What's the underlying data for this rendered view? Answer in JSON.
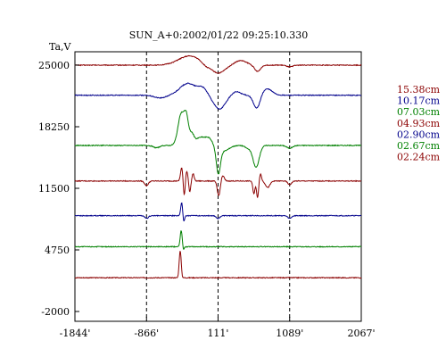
{
  "chart_data": {
    "type": "line",
    "title": "SUN_A+0:2002/01/22 09:25:10.330",
    "ylabel": "Ta,V",
    "xlabel": "",
    "xlim": [
      -1844,
      2067
    ],
    "ylim": [
      -2000,
      25000
    ],
    "x_ticks": [
      -1844,
      -866,
      111,
      1089,
      2067
    ],
    "x_tick_labels": [
      "-1844'",
      "-866'",
      "111'",
      "1089'",
      "2067'"
    ],
    "y_ticks": [
      25000,
      18250,
      11500,
      4750,
      -2000
    ],
    "y_tick_labels": [
      "25000",
      "18250",
      "11500",
      "4750",
      "-2000"
    ],
    "vlines": [
      -866,
      111,
      1089
    ],
    "legend_placement": "right",
    "series": [
      {
        "name": "15.38cm",
        "color": "#8b0000",
        "baseline": 25000,
        "features": [
          [
            -280,
            150,
            1000
          ],
          [
            -60,
            50,
            -300
          ],
          [
            111,
            90,
            -900
          ],
          [
            420,
            80,
            500
          ],
          [
            650,
            40,
            -700
          ],
          [
            1089,
            40,
            -200
          ]
        ]
      },
      {
        "name": "10.17cm",
        "color": "#00008b",
        "baseline": 21700,
        "features": [
          [
            -680,
            80,
            -300
          ],
          [
            -300,
            110,
            1300
          ],
          [
            -100,
            60,
            700
          ],
          [
            130,
            80,
            -1500
          ],
          [
            360,
            60,
            400
          ],
          [
            640,
            45,
            -1500
          ],
          [
            780,
            70,
            700
          ]
        ]
      },
      {
        "name": "07.03cm",
        "color": "#008000",
        "baseline": 16200,
        "features": [
          [
            -730,
            45,
            -250
          ],
          [
            -390,
            45,
            3500
          ],
          [
            -320,
            28,
            2500
          ],
          [
            -250,
            30,
            1100
          ],
          [
            -120,
            80,
            900
          ],
          [
            -10,
            40,
            500
          ],
          [
            115,
            28,
            -2800
          ],
          [
            190,
            70,
            -600
          ],
          [
            520,
            40,
            -300
          ],
          [
            630,
            42,
            -2400
          ],
          [
            1089,
            40,
            -300
          ]
        ]
      },
      {
        "name": "04.93cm",
        "color": "#8b0000",
        "baseline": 12300,
        "features": [
          [
            -866,
            25,
            -500
          ],
          [
            -385,
            16,
            1500
          ],
          [
            -350,
            14,
            -1800
          ],
          [
            -320,
            16,
            1200
          ],
          [
            -275,
            12,
            -1200
          ],
          [
            -230,
            14,
            800
          ],
          [
            120,
            20,
            -1600
          ],
          [
            175,
            20,
            600
          ],
          [
            600,
            14,
            -1400
          ],
          [
            650,
            14,
            -1800
          ],
          [
            690,
            14,
            800
          ],
          [
            790,
            30,
            -700
          ],
          [
            1089,
            25,
            -400
          ]
        ]
      },
      {
        "name": "02.90cm",
        "color": "#00008b",
        "baseline": 8500,
        "features": [
          [
            -385,
            14,
            1500
          ],
          [
            -360,
            12,
            -800
          ],
          [
            -866,
            25,
            -300
          ],
          [
            111,
            25,
            -300
          ],
          [
            1089,
            25,
            -300
          ]
        ]
      },
      {
        "name": "02.67cm",
        "color": "#008000",
        "baseline": 5100,
        "features": [
          [
            -392,
            14,
            1800
          ],
          [
            -365,
            12,
            -400
          ]
        ]
      },
      {
        "name": "02.24cm",
        "color": "#8b0000",
        "baseline": 1700,
        "features": [
          [
            -410,
            12,
            2500
          ],
          [
            -395,
            10,
            1000
          ]
        ]
      }
    ]
  }
}
